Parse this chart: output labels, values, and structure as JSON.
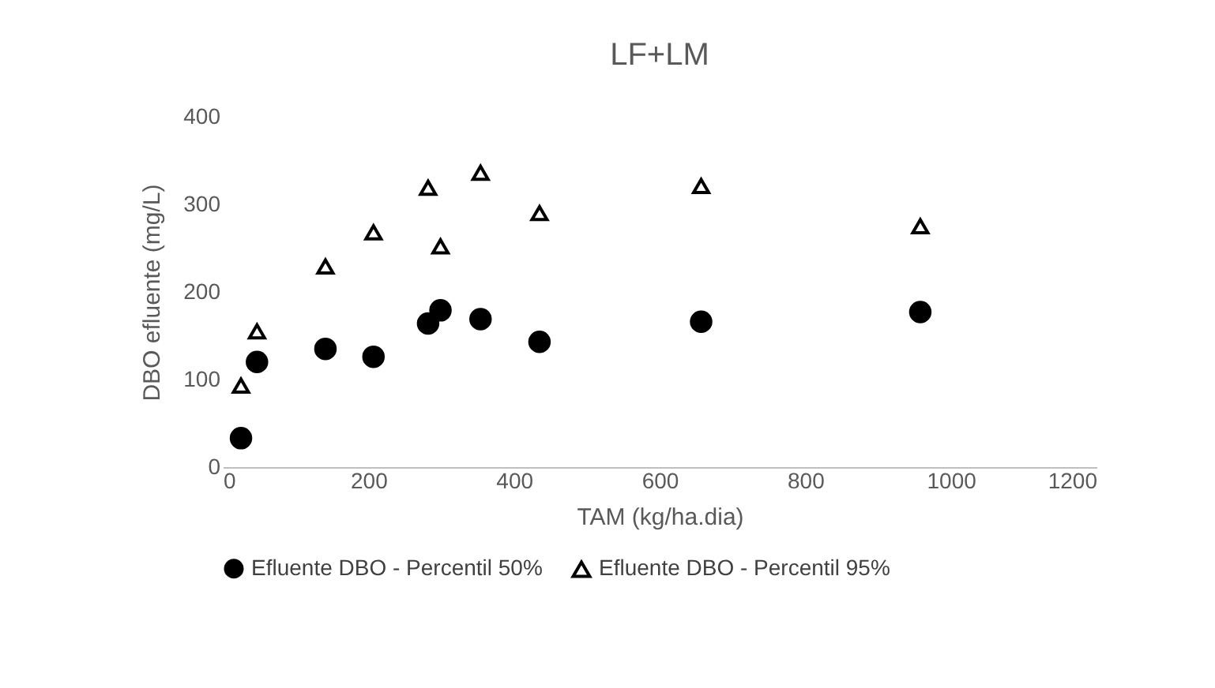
{
  "chart_data": {
    "type": "scatter",
    "title": "LF+LM",
    "xlabel": "TAM (kg/ha.dia)",
    "ylabel": "DBO efluente (mg/L)",
    "x": [
      25,
      47,
      141,
      207,
      282,
      299,
      354,
      435,
      657,
      958
    ],
    "series": [
      {
        "name": "Efluente DBO - Percentil 50%",
        "color": "#000000",
        "marker": "circle",
        "values": [
          33,
          120,
          135,
          126,
          164,
          179,
          169,
          143,
          166,
          177
        ]
      },
      {
        "name": "Efluente DBO - Percentil 95%",
        "color": "#000000",
        "marker": "triangle",
        "values": [
          93,
          155,
          229,
          268,
          319,
          252,
          336,
          290,
          321,
          275
        ]
      }
    ],
    "xlim": [
      0,
      1200
    ],
    "xticks": [
      0,
      200,
      400,
      600,
      800,
      1000,
      1200
    ],
    "ylim": [
      0,
      400
    ],
    "yticks": [
      0,
      100,
      200,
      300,
      400
    ],
    "legend": "bottom"
  }
}
